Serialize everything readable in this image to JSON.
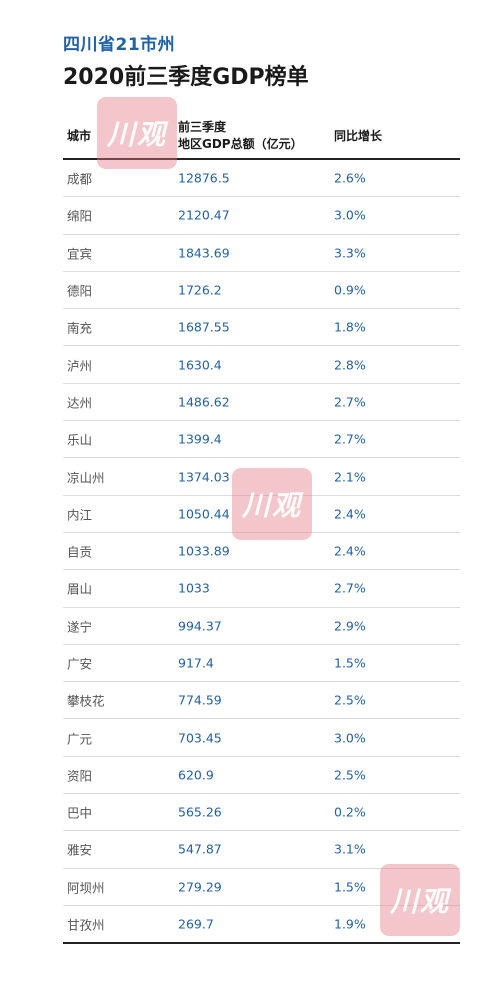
{
  "header": {
    "subtitle": "四川省21市州",
    "title": "2020前三季度GDP榜单"
  },
  "table": {
    "columns": {
      "city": "城市",
      "gdp_line1": "前三季度",
      "gdp_line2": "地区GDP总额（亿元）",
      "growth": "同比增长"
    },
    "rows": [
      {
        "city": "成都",
        "gdp": "12876.5",
        "growth": "2.6%"
      },
      {
        "city": "绵阳",
        "gdp": "2120.47",
        "growth": "3.0%"
      },
      {
        "city": "宜宾",
        "gdp": "1843.69",
        "growth": "3.3%"
      },
      {
        "city": "德阳",
        "gdp": "1726.2",
        "growth": "0.9%"
      },
      {
        "city": "南充",
        "gdp": "1687.55",
        "growth": "1.8%"
      },
      {
        "city": "泸州",
        "gdp": "1630.4",
        "growth": "2.8%"
      },
      {
        "city": "达州",
        "gdp": "1486.62",
        "growth": "2.7%"
      },
      {
        "city": "乐山",
        "gdp": "1399.4",
        "growth": "2.7%"
      },
      {
        "city": "凉山州",
        "gdp": "1374.03",
        "growth": "2.1%"
      },
      {
        "city": "内江",
        "gdp": "1050.44",
        "growth": "2.4%"
      },
      {
        "city": "自贡",
        "gdp": "1033.89",
        "growth": "2.4%"
      },
      {
        "city": "眉山",
        "gdp": "1033",
        "growth": "2.7%"
      },
      {
        "city": "遂宁",
        "gdp": "994.37",
        "growth": "2.9%"
      },
      {
        "city": "广安",
        "gdp": "917.4",
        "growth": "1.5%"
      },
      {
        "city": "攀枝花",
        "gdp": "774.59",
        "growth": "2.5%"
      },
      {
        "city": "广元",
        "gdp": "703.45",
        "growth": "3.0%"
      },
      {
        "city": "资阳",
        "gdp": "620.9",
        "growth": "2.5%"
      },
      {
        "city": "巴中",
        "gdp": "565.26",
        "growth": "0.2%"
      },
      {
        "city": "雅安",
        "gdp": "547.87",
        "growth": "3.1%"
      },
      {
        "city": "阿坝州",
        "gdp": "279.29",
        "growth": "1.5%"
      },
      {
        "city": "甘孜州",
        "gdp": "269.7",
        "growth": "1.9%"
      }
    ]
  },
  "watermark": {
    "text": "川观",
    "color": "#e17882"
  },
  "colors": {
    "accent": "#1f62a6",
    "title": "#1a1a1a"
  }
}
